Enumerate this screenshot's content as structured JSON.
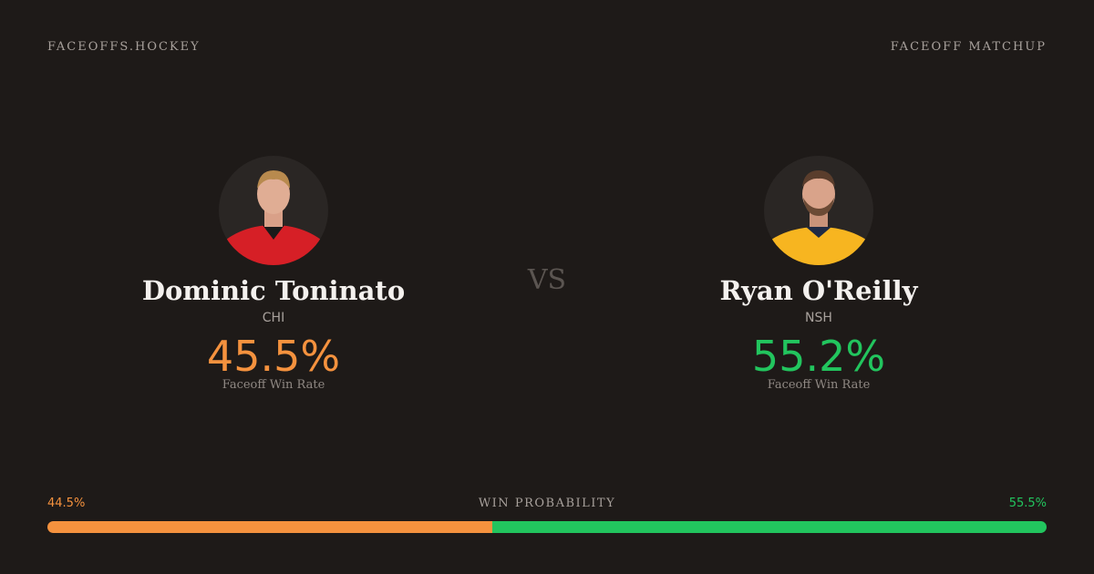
{
  "header": {
    "brand": "FACEOFFS.HOCKEY",
    "label": "FACEOFF MATCHUP"
  },
  "players": [
    {
      "name": "Dominic Toninato",
      "team": "CHI",
      "win_rate": "45.5%",
      "win_rate_label": "Faceoff Win Rate",
      "color": "#f5923e"
    },
    {
      "name": "Ryan O'Reilly",
      "team": "NSH",
      "win_rate": "55.2%",
      "win_rate_label": "Faceoff Win Rate",
      "color": "#22c55e"
    }
  ],
  "vs": "VS",
  "probability": {
    "title": "WIN PROBABILITY",
    "left": {
      "value": 44.5,
      "label": "44.5%"
    },
    "right": {
      "value": 55.5,
      "label": "55.5%"
    }
  }
}
